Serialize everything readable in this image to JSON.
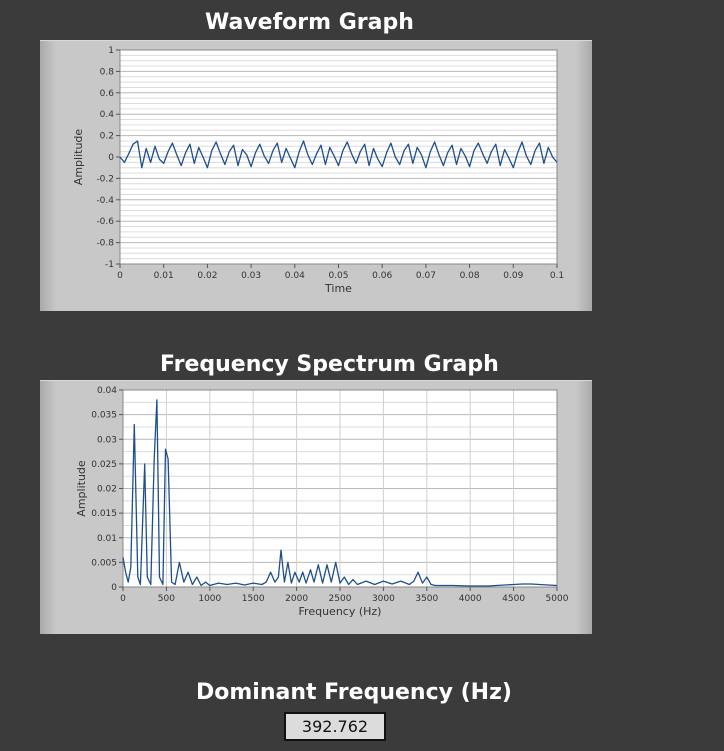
{
  "waveform": {
    "title": "Waveform Graph",
    "chart_data": {
      "type": "line",
      "title": "Waveform Graph",
      "xlabel": "Time",
      "ylabel": "Amplitude",
      "xlim": [
        0,
        0.1
      ],
      "ylim": [
        -1,
        1
      ],
      "x_ticks": [
        "0",
        "0.01",
        "0.02",
        "0.03",
        "0.04",
        "0.05",
        "0.06",
        "0.07",
        "0.08",
        "0.09",
        "0.1"
      ],
      "y_ticks": [
        "1",
        "0.8",
        "0.6",
        "0.4",
        "0.2",
        "0",
        "-0.2",
        "-0.4",
        "-0.6",
        "-0.8",
        "-1"
      ],
      "grid": true,
      "series": [
        {
          "x": [
            0,
            0.001,
            0.002,
            0.003,
            0.004,
            0.005,
            0.006,
            0.007,
            0.008,
            0.009,
            0.01,
            0.011,
            0.012,
            0.013,
            0.014,
            0.015,
            0.016,
            0.017,
            0.018,
            0.019,
            0.02,
            0.021,
            0.022,
            0.023,
            0.024,
            0.025,
            0.026,
            0.027,
            0.028,
            0.029,
            0.03,
            0.031,
            0.032,
            0.033,
            0.034,
            0.035,
            0.036,
            0.037,
            0.038,
            0.039,
            0.04,
            0.041,
            0.042,
            0.043,
            0.044,
            0.045,
            0.046,
            0.047,
            0.048,
            0.049,
            0.05,
            0.051,
            0.052,
            0.053,
            0.054,
            0.055,
            0.056,
            0.057,
            0.058,
            0.059,
            0.06,
            0.061,
            0.062,
            0.063,
            0.064,
            0.065,
            0.066,
            0.067,
            0.068,
            0.069,
            0.07,
            0.071,
            0.072,
            0.073,
            0.074,
            0.075,
            0.076,
            0.077,
            0.078,
            0.079,
            0.08,
            0.081,
            0.082,
            0.083,
            0.084,
            0.085,
            0.086,
            0.087,
            0.088,
            0.089,
            0.09,
            0.091,
            0.092,
            0.093,
            0.094,
            0.095,
            0.096,
            0.097,
            0.098,
            0.099,
            0.1
          ],
          "y": [
            0,
            -0.05,
            0.03,
            0.12,
            0.15,
            -0.1,
            0.08,
            -0.05,
            0.1,
            -0.02,
            -0.06,
            0.05,
            0.13,
            0.02,
            -0.08,
            0.04,
            0.12,
            -0.06,
            0.09,
            0.0,
            -0.1,
            0.06,
            0.14,
            0.03,
            -0.07,
            0.05,
            0.11,
            -0.08,
            0.07,
            0.02,
            -0.09,
            0.04,
            0.12,
            0.01,
            -0.06,
            0.06,
            0.13,
            -0.05,
            0.08,
            -0.01,
            -0.1,
            0.05,
            0.15,
            0.02,
            -0.07,
            0.03,
            0.11,
            -0.07,
            0.09,
            0.01,
            -0.08,
            0.06,
            0.14,
            0.03,
            -0.06,
            0.05,
            0.12,
            -0.08,
            0.08,
            -0.02,
            -0.09,
            0.04,
            0.13,
            0.0,
            -0.07,
            0.06,
            0.12,
            -0.06,
            0.09,
            0.02,
            -0.1,
            0.05,
            0.14,
            0.02,
            -0.08,
            0.04,
            0.11,
            -0.07,
            0.08,
            0.01,
            -0.09,
            0.06,
            0.13,
            0.03,
            -0.06,
            0.05,
            0.12,
            -0.08,
            0.07,
            -0.01,
            -0.1,
            0.04,
            0.14,
            0.01,
            -0.07,
            0.06,
            0.13,
            -0.06,
            0.09,
            0.0,
            -0.05
          ]
        }
      ]
    }
  },
  "spectrum": {
    "title": "Frequency Spectrum Graph",
    "chart_data": {
      "type": "line",
      "title": "Frequency Spectrum Graph",
      "xlabel": "Frequency (Hz)",
      "ylabel": "Amplitude",
      "xlim": [
        0,
        5000
      ],
      "ylim": [
        0,
        0.04
      ],
      "x_ticks": [
        "0",
        "500",
        "1000",
        "1500",
        "2000",
        "2500",
        "3000",
        "3500",
        "4000",
        "4500",
        "5000"
      ],
      "y_ticks": [
        "0.04",
        "0.035",
        "0.03",
        "0.025",
        "0.02",
        "0.015",
        "0.01",
        "0.005",
        "0"
      ],
      "grid": true,
      "series": [
        {
          "x": [
            0,
            30,
            60,
            90,
            130,
            170,
            200,
            250,
            280,
            320,
            360,
            390,
            420,
            460,
            490,
            520,
            560,
            600,
            650,
            700,
            750,
            800,
            850,
            900,
            950,
            1000,
            1100,
            1200,
            1300,
            1400,
            1500,
            1600,
            1650,
            1700,
            1750,
            1790,
            1820,
            1860,
            1900,
            1940,
            1980,
            2030,
            2070,
            2110,
            2160,
            2200,
            2250,
            2300,
            2350,
            2400,
            2450,
            2500,
            2550,
            2600,
            2650,
            2700,
            2800,
            2900,
            3000,
            3100,
            3200,
            3300,
            3350,
            3400,
            3450,
            3500,
            3550,
            3600,
            3700,
            3800,
            4000,
            4200,
            4400,
            4500,
            4600,
            4700,
            4800,
            4900,
            5000
          ],
          "y": [
            0.006,
            0.003,
            0.001,
            0.004,
            0.033,
            0.002,
            0.0005,
            0.025,
            0.002,
            0.0005,
            0.026,
            0.038,
            0.002,
            0.0005,
            0.028,
            0.026,
            0.001,
            0.0005,
            0.005,
            0.001,
            0.003,
            0.0005,
            0.002,
            0.0003,
            0.001,
            0.0003,
            0.0008,
            0.0005,
            0.0008,
            0.0004,
            0.0008,
            0.0005,
            0.001,
            0.003,
            0.001,
            0.002,
            0.0075,
            0.001,
            0.005,
            0.0008,
            0.003,
            0.001,
            0.003,
            0.0008,
            0.0035,
            0.001,
            0.0045,
            0.0008,
            0.0045,
            0.001,
            0.005,
            0.0008,
            0.002,
            0.0005,
            0.0015,
            0.0005,
            0.0012,
            0.0005,
            0.0012,
            0.0006,
            0.0012,
            0.0005,
            0.0012,
            0.003,
            0.0008,
            0.002,
            0.0005,
            0.0003,
            0.0003,
            0.0003,
            0.0002,
            0.0002,
            0.0004,
            0.0005,
            0.0006,
            0.0006,
            0.0005,
            0.0004,
            0.0003
          ]
        }
      ]
    }
  },
  "dominant": {
    "label": "Dominant Frequency (Hz)",
    "value": "392.762"
  }
}
